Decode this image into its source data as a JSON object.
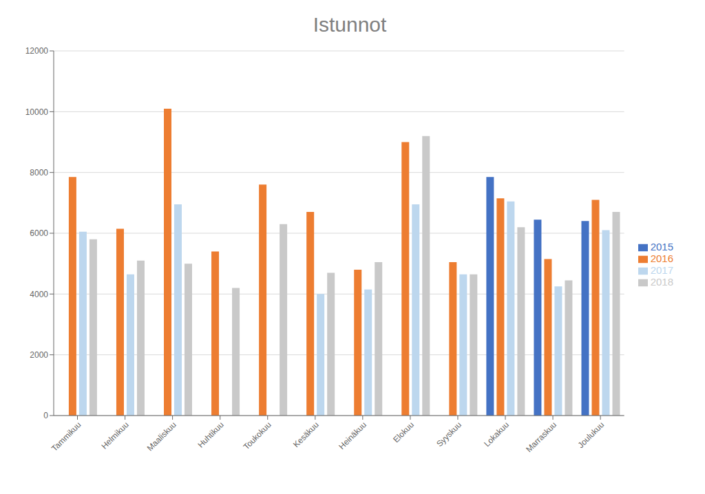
{
  "chart_data": {
    "type": "bar",
    "title": "Istunnot",
    "categories": [
      "Tammikuu",
      "Helmikuu",
      "Maaliskuu",
      "Huhtikuu",
      "Toukokuu",
      "Kesäkuu",
      "Heinäkuu",
      "Elokuu",
      "Syyskuu",
      "Lokakuu",
      "Marraskuu",
      "Joulukuu"
    ],
    "series": [
      {
        "name": "2015",
        "color": "#4472c4",
        "values": [
          null,
          null,
          null,
          null,
          null,
          null,
          null,
          null,
          null,
          7850,
          6450,
          6400
        ]
      },
      {
        "name": "2016",
        "color": "#ed7d31",
        "values": [
          7850,
          6150,
          10100,
          5400,
          7600,
          6700,
          4800,
          9000,
          5050,
          7150,
          5150,
          7100
        ]
      },
      {
        "name": "2017",
        "color": "#bdd7ee",
        "values": [
          6050,
          4650,
          6950,
          null,
          null,
          4000,
          4150,
          6950,
          4650,
          7050,
          4250,
          6100
        ]
      },
      {
        "name": "2018",
        "color": "#c9c9c9",
        "values": [
          5800,
          5100,
          5000,
          4200,
          6300,
          4700,
          5050,
          9200,
          4650,
          6200,
          4450,
          6700
        ]
      }
    ],
    "ylim": [
      0,
      12000
    ],
    "yticks": [
      0,
      2000,
      4000,
      6000,
      8000,
      10000,
      12000
    ],
    "grid": true,
    "legend": "right"
  }
}
